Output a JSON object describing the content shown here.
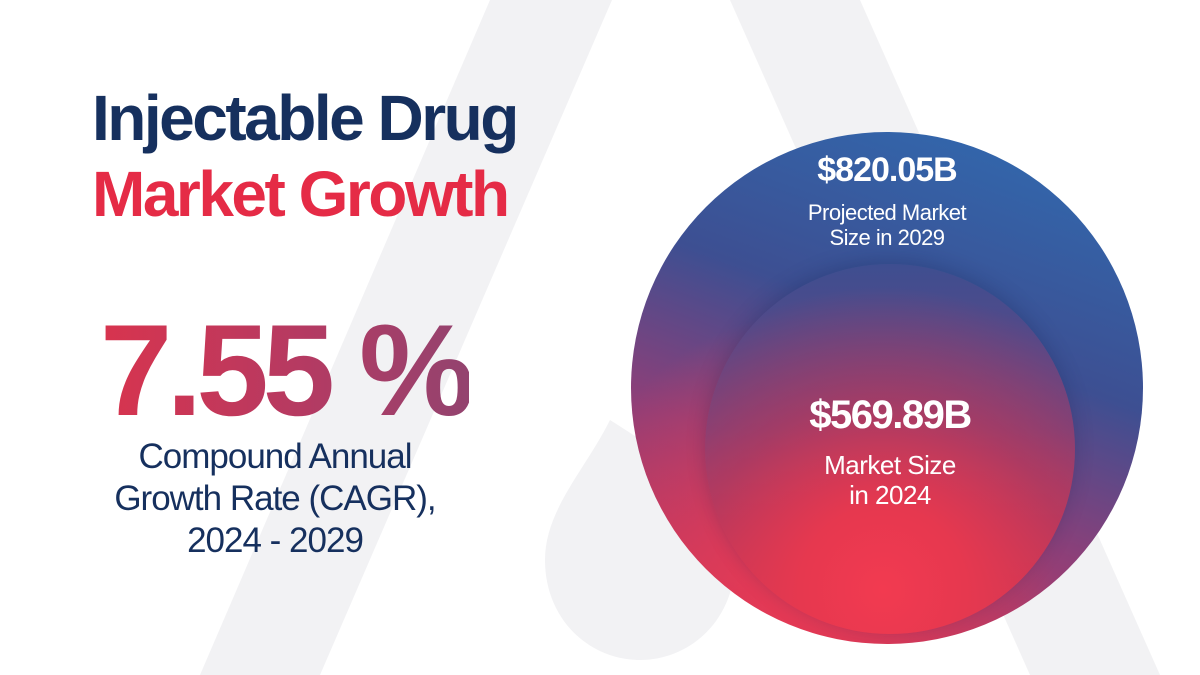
{
  "title": {
    "line1": "Injectable Drug",
    "line2": "Market Growth"
  },
  "cagr": {
    "value": "7.55 %",
    "label_lines": [
      "Compound Annual",
      "Growth Rate (CAGR),",
      "2024 - 2029"
    ]
  },
  "projected": {
    "value": "$820.05B",
    "label_lines": [
      "Projected Market",
      "Size in 2029"
    ]
  },
  "current": {
    "value": "$569.89B",
    "label_lines": [
      "Market Size",
      "in 2024"
    ]
  },
  "colors": {
    "navy": "#16305e",
    "red": "#e52b46",
    "blue": "#2f6db3",
    "background_mark": "#f2f2f4"
  },
  "icons": {
    "background_logo": "large faint stylized letter A with droplet"
  }
}
